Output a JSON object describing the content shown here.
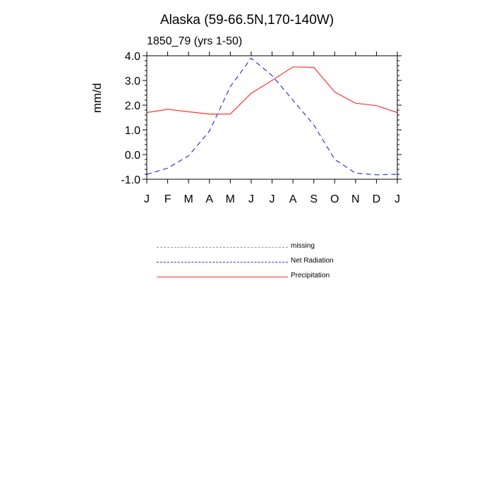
{
  "title": "Alaska (59-66.5N,170-140W)",
  "subtitle": "1850_79 (yrs 1-50)",
  "legend": [
    {
      "label": "missing",
      "color": "#9a9a9a",
      "style": "dashed"
    },
    {
      "label": "Net Radiation",
      "color": "#3333dd",
      "style": "dashed"
    },
    {
      "label": "Precipitation",
      "color": "#ff3333",
      "style": "solid"
    }
  ],
  "chart_data": {
    "type": "line",
    "title": "Alaska (59-66.5N,170-140W)",
    "subtitle": "1850_79 (yrs 1-50)",
    "xlabel": "",
    "ylabel": "mm/d",
    "categories": [
      "J",
      "F",
      "M",
      "A",
      "M",
      "J",
      "J",
      "A",
      "S",
      "O",
      "N",
      "D",
      "J"
    ],
    "y_tick_labels": [
      "4.0",
      "3.0",
      "2.0",
      "1.0",
      "0.0",
      "-1.0"
    ],
    "y_ticks": [
      4,
      3,
      2,
      1,
      0,
      -1
    ],
    "ylim": [
      -1,
      4
    ],
    "grid": false,
    "legend_position": "bottom",
    "series": [
      {
        "name": "Net Radiation",
        "color": "#3333dd",
        "style": "dashed",
        "values": [
          -0.8,
          -0.55,
          -0.05,
          0.95,
          2.75,
          3.9,
          3.2,
          2.2,
          1.2,
          -0.2,
          -0.75,
          -0.82,
          -0.8
        ]
      },
      {
        "name": "Precipitation",
        "color": "#ff3333",
        "style": "solid",
        "values": [
          1.7,
          1.83,
          1.73,
          1.64,
          1.64,
          2.48,
          3.0,
          3.55,
          3.53,
          2.53,
          2.08,
          1.98,
          1.7
        ]
      }
    ]
  }
}
